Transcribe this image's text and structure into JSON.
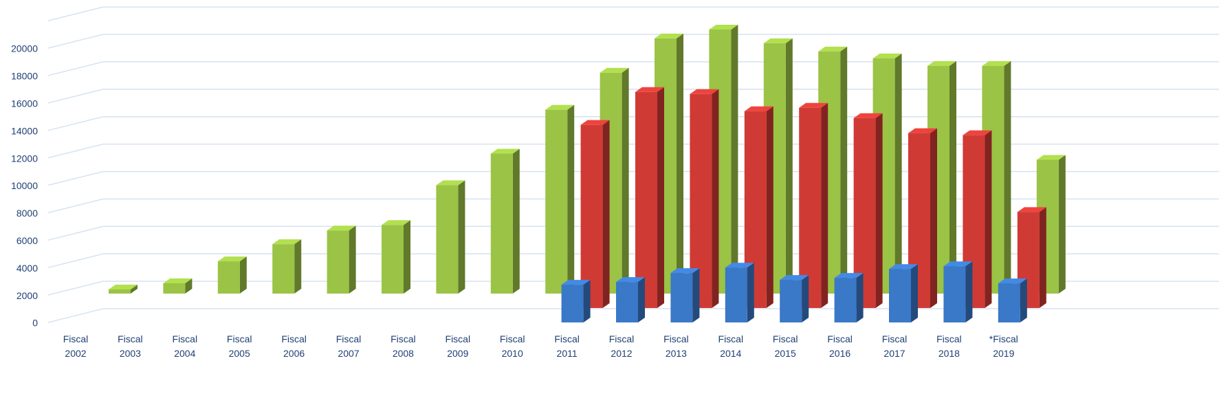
{
  "chart_data": {
    "type": "bar3d",
    "categories": [
      "Fiscal 2002",
      "Fiscal 2003",
      "Fiscal 2004",
      "Fiscal 2005",
      "Fiscal 2006",
      "Fiscal 2007",
      "Fiscal 2008",
      "Fiscal 2009",
      "Fiscal 2010",
      "Fiscal 2011",
      "Fiscal 2012",
      "Fiscal 2013",
      "Fiscal 2014",
      "Fiscal 2015",
      "Fiscal 2016",
      "Fiscal 2017",
      "Fiscal 2018",
      "*Fiscal 2019"
    ],
    "series": [
      {
        "color": "#3a78c8",
        "values": [
          null,
          null,
          null,
          null,
          null,
          null,
          null,
          null,
          null,
          2750,
          2950,
          3600,
          4000,
          3100,
          3250,
          3900,
          4100,
          2850
        ]
      },
      {
        "color": "#d03a35",
        "values": [
          null,
          null,
          null,
          null,
          null,
          null,
          null,
          null,
          null,
          13350,
          15750,
          15600,
          14350,
          14600,
          13850,
          12750,
          12600,
          7000
        ]
      },
      {
        "color": "#9bc345",
        "values": [
          300,
          750,
          2350,
          3600,
          4600,
          5000,
          7900,
          10200,
          13400,
          16100,
          18600,
          19250,
          18250,
          17650,
          17150,
          16600,
          16600,
          9750
        ]
      }
    ],
    "ylim": [
      0,
      22000
    ],
    "yticks": [
      0,
      2000,
      4000,
      6000,
      8000,
      10000,
      12000,
      14000,
      16000,
      18000,
      20000
    ],
    "grid": true
  }
}
